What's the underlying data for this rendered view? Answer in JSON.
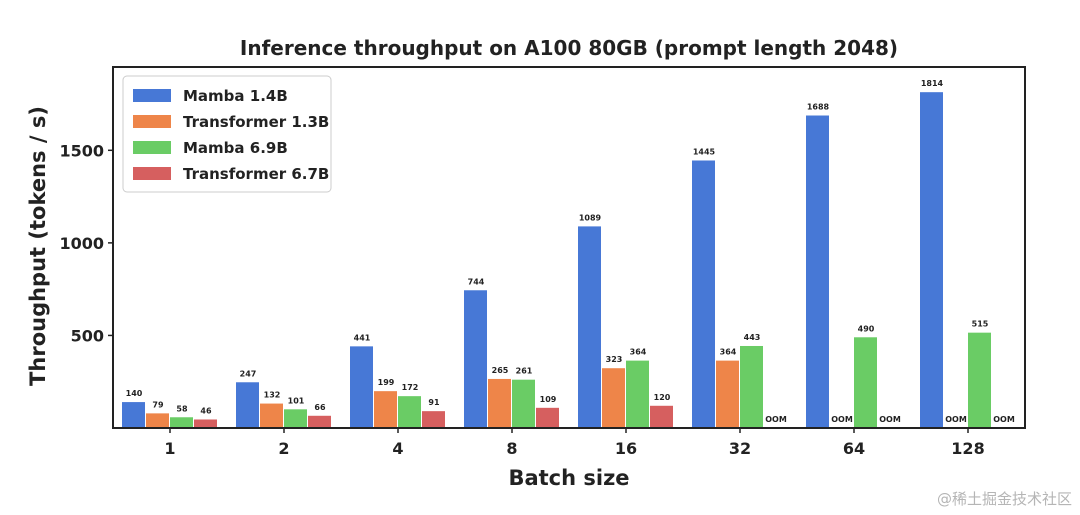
{
  "watermark": "@稀土掘金技术社区",
  "chart_data": {
    "type": "bar",
    "title": "Inference throughput on A100 80GB (prompt length 2048)",
    "xlabel": "Batch size",
    "ylabel": "Throughput (tokens / s)",
    "categories": [
      "1",
      "2",
      "4",
      "8",
      "16",
      "32",
      "64",
      "128"
    ],
    "ylim": [
      0,
      1950
    ],
    "yticks": [
      500,
      1000,
      1500
    ],
    "legend_position": "top-left",
    "oom_label": "OOM",
    "series": [
      {
        "name": "Mamba 1.4B",
        "color": "#4778d6",
        "values": [
          140,
          247,
          441,
          744,
          1089,
          1445,
          1688,
          1814
        ]
      },
      {
        "name": "Transformer 1.3B",
        "color": "#ee8549",
        "values": [
          79,
          132,
          199,
          265,
          323,
          364,
          null,
          null
        ]
      },
      {
        "name": "Mamba 6.9B",
        "color": "#6acc65",
        "values": [
          58,
          101,
          172,
          261,
          364,
          443,
          490,
          515
        ]
      },
      {
        "name": "Transformer 6.7B",
        "color": "#d65f5f",
        "values": [
          46,
          66,
          91,
          109,
          120,
          null,
          null,
          null
        ]
      }
    ]
  }
}
